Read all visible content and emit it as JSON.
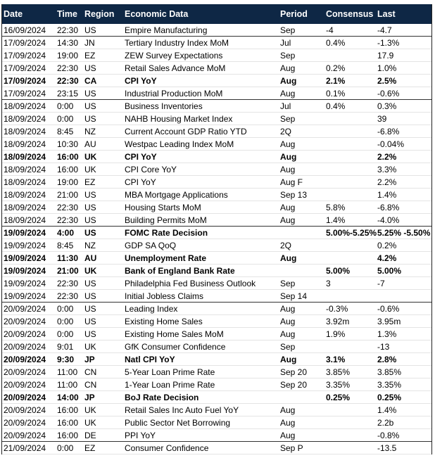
{
  "table": {
    "header": [
      "Date",
      "Time",
      "Region",
      "Economic Data",
      "Period",
      "Consensus",
      "Last"
    ],
    "rows": [
      {
        "cells": [
          "16/09/2024",
          "22:30",
          "US",
          "Empire Manufacturing",
          "Sep",
          "-4",
          "-4.7"
        ]
      },
      {
        "cells": [
          "17/09/2024",
          "14:30",
          "JN",
          "Tertiary Industry Index MoM",
          "Jul",
          "0.4%",
          "-1.3%"
        ]
      },
      {
        "cells": [
          "17/09/2024",
          "19:00",
          "EZ",
          "ZEW Survey Expectations",
          "Sep",
          null,
          "17.9"
        ]
      },
      {
        "cells": [
          "17/09/2024",
          "22:30",
          "US",
          "Retail Sales Advance MoM",
          "Aug",
          "0.2%",
          "1.0%"
        ]
      },
      {
        "cells": [
          "17/09/2024",
          "22:30",
          "CA",
          "CPI YoY",
          "Aug",
          "2.1%",
          "2.5%"
        ],
        "bold": true
      },
      {
        "cells": [
          "17/09/2024",
          "23:15",
          "US",
          "Industrial Production MoM",
          "Aug",
          "0.1%",
          "-0.6%"
        ]
      },
      {
        "cells": [
          "18/09/2024",
          "0:00",
          "US",
          "Business Inventories",
          "Jul",
          "0.4%",
          "0.3%"
        ]
      },
      {
        "cells": [
          "18/09/2024",
          "0:00",
          "US",
          "NAHB Housing Market Index",
          "Sep",
          null,
          "39"
        ]
      },
      {
        "cells": [
          "18/09/2024",
          "8:45",
          "NZ",
          "Current Account GDP Ratio YTD",
          "2Q",
          null,
          "-6.8%"
        ]
      },
      {
        "cells": [
          "18/09/2024",
          "10:30",
          "AU",
          "Westpac Leading Index MoM",
          "Aug",
          null,
          "-0.04%"
        ]
      },
      {
        "cells": [
          "18/09/2024",
          "16:00",
          "UK",
          "CPI YoY",
          "Aug",
          null,
          "2.2%"
        ],
        "bold": true
      },
      {
        "cells": [
          "18/09/2024",
          "16:00",
          "UK",
          "CPI Core YoY",
          "Aug",
          null,
          "3.3%"
        ]
      },
      {
        "cells": [
          "18/09/2024",
          "19:00",
          "EZ",
          "CPI YoY",
          "Aug F",
          null,
          "2.2%"
        ]
      },
      {
        "cells": [
          "18/09/2024",
          "21:00",
          "US",
          "MBA Mortgage Applications",
          "Sep 13",
          null,
          "1.4%"
        ]
      },
      {
        "cells": [
          "18/09/2024",
          "22:30",
          "US",
          "Housing Starts MoM",
          "Aug",
          "5.8%",
          "-6.8%"
        ]
      },
      {
        "cells": [
          "18/09/2024",
          "22:30",
          "US",
          "Building Permits MoM",
          "Aug",
          "1.4%",
          "-4.0%"
        ]
      },
      {
        "cells": [
          "19/09/2024",
          "4:00",
          "US",
          "FOMC Rate Decision",
          null,
          "5.00%-5.25%",
          "5.25% -5.50%"
        ],
        "bold": true
      },
      {
        "cells": [
          "19/09/2024",
          "8:45",
          "NZ",
          "GDP SA QoQ",
          "2Q",
          null,
          "0.2%"
        ]
      },
      {
        "cells": [
          "19/09/2024",
          "11:30",
          "AU",
          "Unemployment Rate",
          "Aug",
          null,
          "4.2%"
        ],
        "bold": true
      },
      {
        "cells": [
          "19/09/2024",
          "21:00",
          "UK",
          "Bank of England Bank Rate",
          null,
          "5.00%",
          "5.00%"
        ],
        "bold": true
      },
      {
        "cells": [
          "19/09/2024",
          "22:30",
          "US",
          "Philadelphia Fed Business Outlook",
          "Sep",
          "3",
          "-7"
        ]
      },
      {
        "cells": [
          "19/09/2024",
          "22:30",
          "US",
          "Initial Jobless Claims",
          "Sep 14",
          null,
          null
        ]
      },
      {
        "cells": [
          "20/09/2024",
          "0:00",
          "US",
          "Leading Index",
          "Aug",
          "-0.3%",
          "-0.6%"
        ]
      },
      {
        "cells": [
          "20/09/2024",
          "0:00",
          "US",
          "Existing Home Sales",
          "Aug",
          "3.92m",
          "3.95m"
        ]
      },
      {
        "cells": [
          "20/09/2024",
          "0:00",
          "US",
          "Existing Home Sales MoM",
          "Aug",
          "1.9%",
          "1.3%"
        ]
      },
      {
        "cells": [
          "20/09/2024",
          "9:01",
          "UK",
          "GfK Consumer Confidence",
          "Sep",
          null,
          "-13"
        ]
      },
      {
        "cells": [
          "20/09/2024",
          "9:30",
          "JP",
          "Natl CPI YoY",
          "Aug",
          "3.1%",
          "2.8%"
        ],
        "bold": true
      },
      {
        "cells": [
          "20/09/2024",
          "11:00",
          "CN",
          "5-Year Loan Prime Rate",
          "Sep 20",
          "3.85%",
          "3.85%"
        ]
      },
      {
        "cells": [
          "20/09/2024",
          "11:00",
          "CN",
          "1-Year Loan Prime Rate",
          "Sep 20",
          "3.35%",
          "3.35%"
        ]
      },
      {
        "cells": [
          "20/09/2024",
          "14:00",
          "JP",
          "BoJ Rate Decision",
          null,
          "0.25%",
          "0.25%"
        ],
        "bold": true
      },
      {
        "cells": [
          "20/09/2024",
          "16:00",
          "UK",
          "Retail Sales Inc Auto Fuel YoY",
          "Aug",
          null,
          "1.4%"
        ]
      },
      {
        "cells": [
          "20/09/2024",
          "16:00",
          "UK",
          "Public Sector Net Borrowing",
          "Aug",
          null,
          "2.2b"
        ]
      },
      {
        "cells": [
          "20/09/2024",
          "16:00",
          "DE",
          "PPI YoY",
          "Aug",
          null,
          "-0.8%"
        ]
      },
      {
        "cells": [
          "21/09/2024",
          "0:00",
          "EZ",
          "Consumer Confidence",
          "Sep P",
          null,
          "-13.5"
        ]
      }
    ]
  }
}
